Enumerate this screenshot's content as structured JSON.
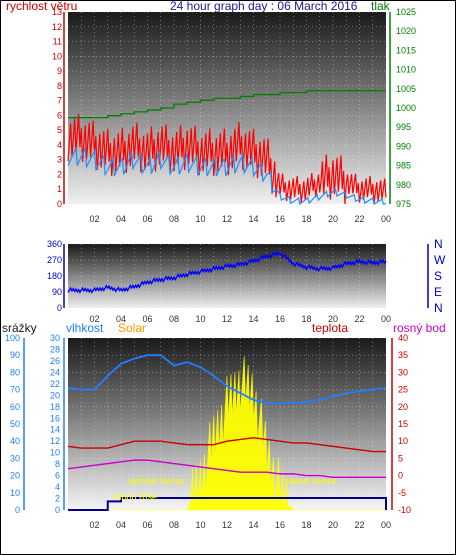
{
  "title": "24 hour graph day : 06 March 2016",
  "colors": {
    "wind": "#ff0000",
    "gust": "#1e90ff",
    "pressure": "#008000",
    "direction": "#0000ff",
    "humidity": "#1e7fff",
    "solar": "#ffff00",
    "temperature": "#cc0000",
    "dewpoint": "#cc00cc",
    "rain": "#00008b",
    "solar_label": "#ff9900",
    "left_axis": "#cc0000",
    "pressure_axis": "#008000",
    "dir_axis": "#0000cc",
    "rain_axis": "#1e7fff",
    "hum_axis": "#1e7fff",
    "temp_axis": "#cc0000",
    "dew_axis": "#cc00cc"
  },
  "x_ticks": [
    "02",
    "04",
    "06",
    "08",
    "10",
    "12",
    "14",
    "16",
    "18",
    "20",
    "22",
    "00"
  ],
  "chart_data": [
    {
      "type": "line",
      "name": "wind",
      "left_label": "rychlost větru",
      "right_label": "tlak",
      "left_ticks": [
        "0",
        "1",
        "2",
        "3",
        "4",
        "5",
        "6",
        "7",
        "8",
        "9",
        "10",
        "11",
        "12",
        "13"
      ],
      "right_ticks": [
        "975",
        "980",
        "985",
        "990",
        "995",
        "1000",
        "1005",
        "1010",
        "1015",
        "1020",
        "1025"
      ],
      "ylim_left": [
        0,
        13
      ],
      "ylim_right": [
        975,
        1025
      ],
      "x": [
        1,
        2,
        3,
        4,
        5,
        6,
        7,
        8,
        9,
        10,
        11,
        12,
        13,
        14,
        15,
        16,
        17,
        18,
        19,
        20,
        21,
        22,
        23,
        24
      ],
      "series": [
        {
          "key": "wind",
          "values": [
            4.5,
            4.0,
            3.5,
            3.5,
            4.0,
            3.5,
            4.0,
            3.5,
            4.0,
            3.5,
            3.5,
            3.5,
            4.0,
            3.5,
            3.0,
            1.2,
            1.0,
            1.0,
            1.5,
            2.0,
            1.5,
            1.0,
            1.0,
            0.8
          ],
          "axis": "left"
        },
        {
          "key": "gust",
          "values": [
            3.2,
            3.0,
            2.5,
            2.5,
            3.0,
            2.5,
            3.0,
            2.5,
            2.8,
            2.5,
            2.5,
            2.5,
            2.8,
            2.5,
            2.0,
            0.5,
            0.2,
            0.2,
            0.5,
            0.8,
            0.6,
            0.3,
            0.2,
            0.1
          ],
          "axis": "left"
        },
        {
          "key": "pressure",
          "values": [
            997.5,
            997.5,
            997.5,
            998.0,
            998.5,
            999.0,
            999.5,
            1000.0,
            1001.0,
            1001.5,
            1002.0,
            1002.5,
            1002.5,
            1003.0,
            1003.5,
            1003.5,
            1004.0,
            1004.0,
            1004.5,
            1004.5,
            1004.5,
            1004.5,
            1004.5,
            1004.5
          ],
          "axis": "right"
        }
      ]
    },
    {
      "type": "scatter",
      "name": "direction",
      "left_ticks": [
        "0",
        "90",
        "180",
        "270",
        "360"
      ],
      "right_ticks": [
        "N",
        "W",
        "S",
        "E",
        "N"
      ],
      "ylim": [
        0,
        360
      ],
      "x": [
        1,
        2,
        3,
        4,
        5,
        6,
        7,
        8,
        9,
        10,
        11,
        12,
        13,
        14,
        15,
        16,
        17,
        18,
        19,
        20,
        21,
        22,
        23,
        24
      ],
      "values": [
        100,
        100,
        115,
        100,
        120,
        145,
        160,
        170,
        190,
        205,
        220,
        235,
        245,
        265,
        290,
        310,
        250,
        230,
        220,
        225,
        250,
        260,
        255,
        260
      ]
    },
    {
      "type": "line",
      "name": "climate",
      "left_labels": [
        "srážky",
        "vlhkost",
        "Solar"
      ],
      "right_labels": [
        "teplota",
        "rosný bod"
      ],
      "rain_ticks": [
        "0",
        "10",
        "20",
        "30",
        "40",
        "50",
        "60",
        "70",
        "80",
        "90",
        "100"
      ],
      "hum_ticks": [
        "0",
        "2",
        "4",
        "6",
        "8",
        "10",
        "12",
        "14",
        "16",
        "18",
        "20",
        "22",
        "24",
        "26",
        "28",
        "30"
      ],
      "temp_ticks": [
        "-10",
        "-5",
        "0",
        "5",
        "10",
        "15",
        "20",
        "25",
        "30",
        "35",
        "40"
      ],
      "annotations": {
        "sunrise": "východ slunce",
        "sunset": "západ slunce",
        "moonrise": "Moon Rise"
      },
      "x": [
        0,
        1,
        2,
        3,
        4,
        5,
        6,
        7,
        8,
        9,
        10,
        11,
        12,
        13,
        14,
        15,
        16,
        17,
        18,
        19,
        20,
        21,
        22,
        23,
        24
      ],
      "humidity": [
        71,
        70,
        70,
        78,
        85,
        88,
        90,
        90,
        84,
        86,
        83,
        78,
        72,
        68,
        64,
        62,
        62,
        62,
        63,
        64,
        66,
        68,
        69,
        70,
        71
      ],
      "temperature": [
        8.5,
        8.0,
        8.0,
        8.0,
        9.0,
        10.0,
        10.0,
        10.0,
        9.5,
        9.0,
        9.0,
        9.0,
        10.0,
        10.5,
        11.0,
        10.5,
        10.0,
        9.5,
        9.5,
        9.0,
        8.5,
        8.0,
        7.5,
        7.0,
        7.0
      ],
      "dewpoint": [
        2.0,
        2.5,
        3.0,
        3.5,
        4.0,
        4.5,
        4.5,
        4.0,
        3.5,
        3.0,
        2.5,
        2.0,
        1.5,
        1.0,
        1.0,
        1.0,
        0.5,
        0.5,
        0.0,
        0.0,
        -0.5,
        -0.5,
        -0.5,
        -0.5,
        -0.5
      ],
      "solar": [
        0,
        0,
        0,
        0,
        0,
        0,
        0,
        0,
        0,
        0,
        5,
        12,
        18,
        22,
        20,
        10,
        3,
        0,
        0,
        0,
        0,
        0,
        0,
        0,
        0
      ],
      "rain": [
        0,
        0,
        0,
        5,
        7,
        7,
        7,
        7,
        7,
        7,
        7,
        7,
        7,
        7,
        7,
        7,
        7,
        7,
        7,
        7,
        7,
        7,
        7,
        7,
        0
      ]
    }
  ]
}
